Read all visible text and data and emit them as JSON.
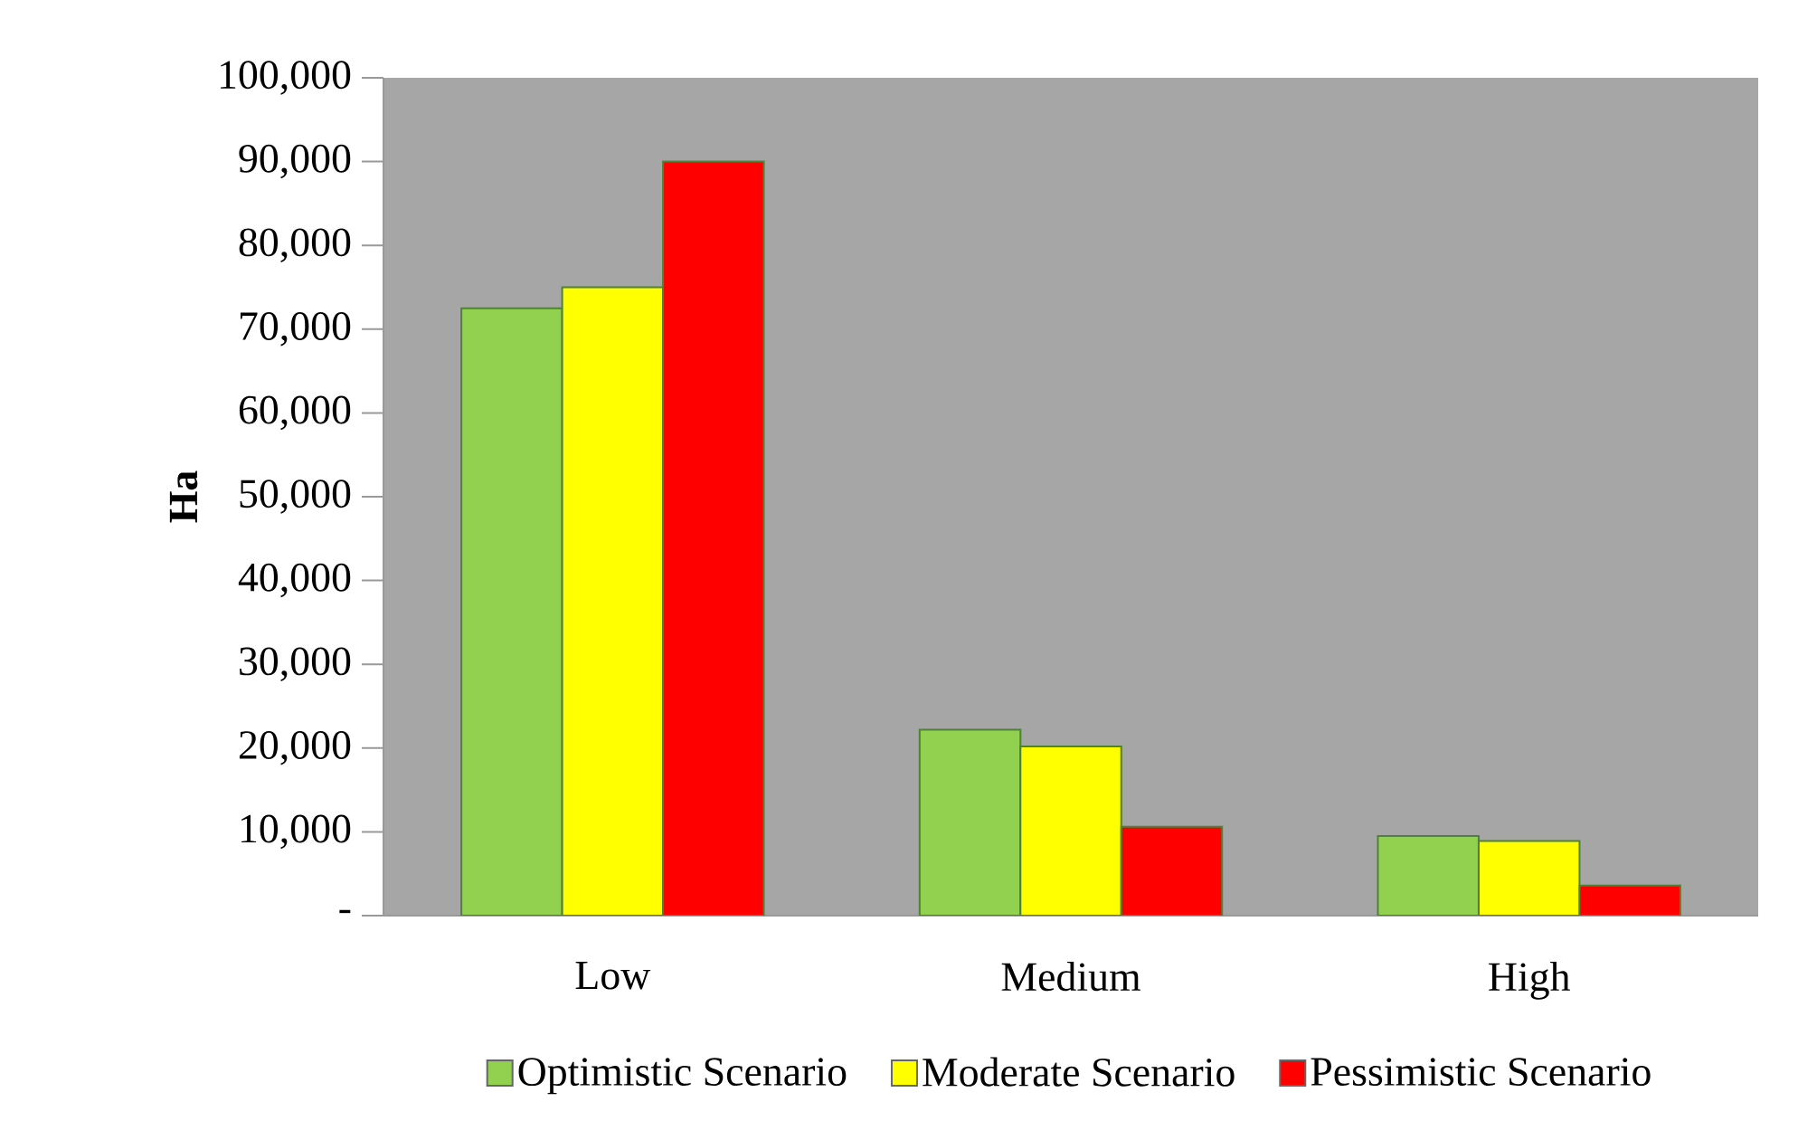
{
  "chart_data": {
    "type": "bar",
    "ylabel": "Ha",
    "categories": [
      "Low",
      "Medium",
      "High"
    ],
    "series": [
      {
        "name": "Optimistic Scenario",
        "color": "#92d050",
        "values": [
          72500,
          22200,
          9500
        ]
      },
      {
        "name": "Moderate Scenario",
        "color": "#ffff00",
        "values": [
          75000,
          20200,
          8900
        ]
      },
      {
        "name": "Pessimistic Scenario",
        "color": "#ff0000",
        "values": [
          90000,
          10600,
          3600
        ]
      }
    ],
    "ylim": [
      0,
      100000
    ],
    "yticks": [
      {
        "value": 0,
        "label": "-"
      },
      {
        "value": 10000,
        "label": "10,000"
      },
      {
        "value": 20000,
        "label": "20,000"
      },
      {
        "value": 30000,
        "label": "30,000"
      },
      {
        "value": 40000,
        "label": "40,000"
      },
      {
        "value": 50000,
        "label": "50,000"
      },
      {
        "value": 60000,
        "label": "60,000"
      },
      {
        "value": 70000,
        "label": "70,000"
      },
      {
        "value": 80000,
        "label": "80,000"
      },
      {
        "value": 90000,
        "label": "90,000"
      },
      {
        "value": 100000,
        "label": "100,000"
      }
    ],
    "legend": "bottom",
    "grid": false
  }
}
